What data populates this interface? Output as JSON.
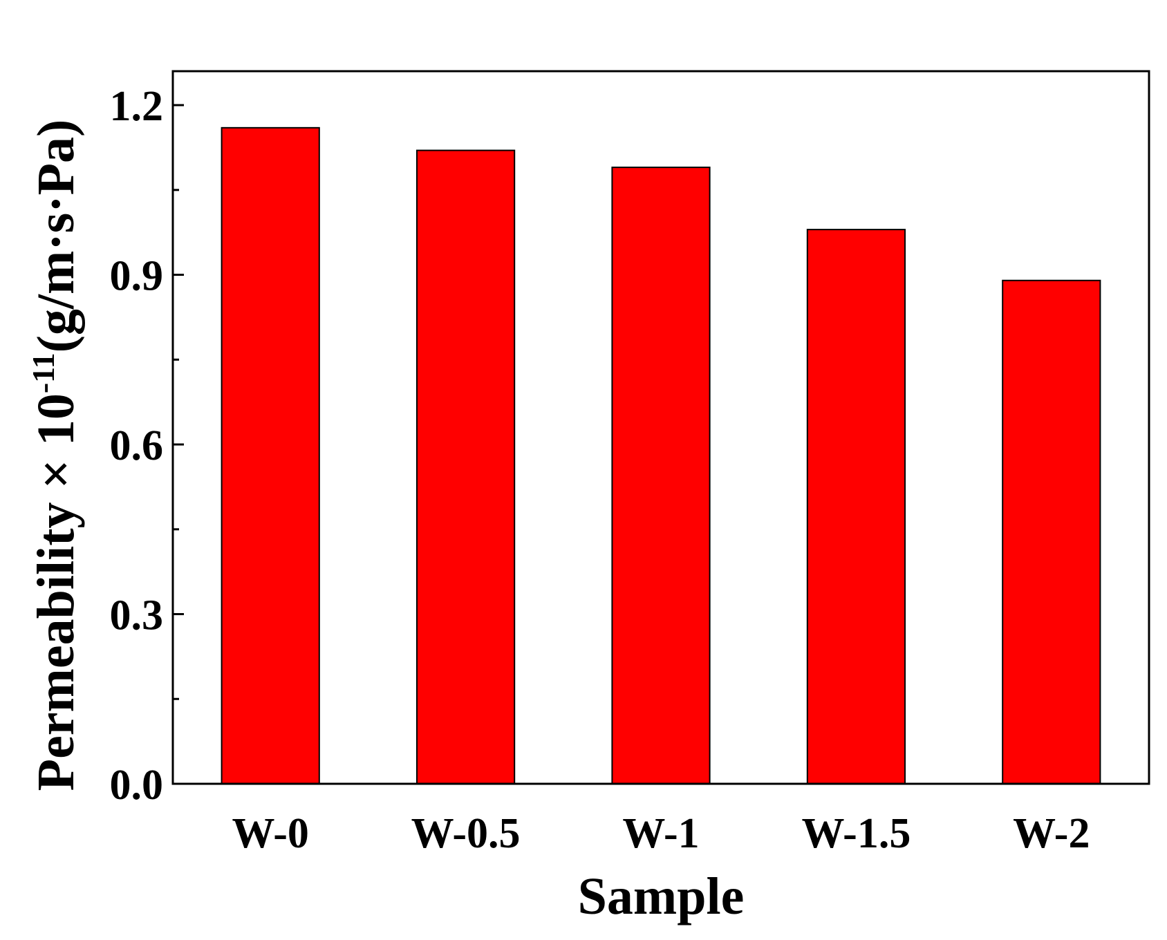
{
  "chart_data": {
    "type": "bar",
    "title": "",
    "xlabel": "Sample",
    "ylabel": {
      "main": "Permeability × 10",
      "superscript": "-11",
      "units": "(g/m·s·Pa)"
    },
    "categories": [
      "W-0",
      "W-0.5",
      "W-1",
      "W-1.5",
      "W-2"
    ],
    "values": [
      1.16,
      1.12,
      1.09,
      0.98,
      0.89
    ],
    "ylim": [
      0,
      1.26
    ],
    "yticks": [
      "0.0",
      "0.3",
      "0.6",
      "0.9",
      "1.2"
    ],
    "grid": false,
    "legend": "none",
    "colors": {
      "bar_fill": "#ff0000",
      "bar_stroke": "#000000",
      "axis": "#000000"
    }
  }
}
